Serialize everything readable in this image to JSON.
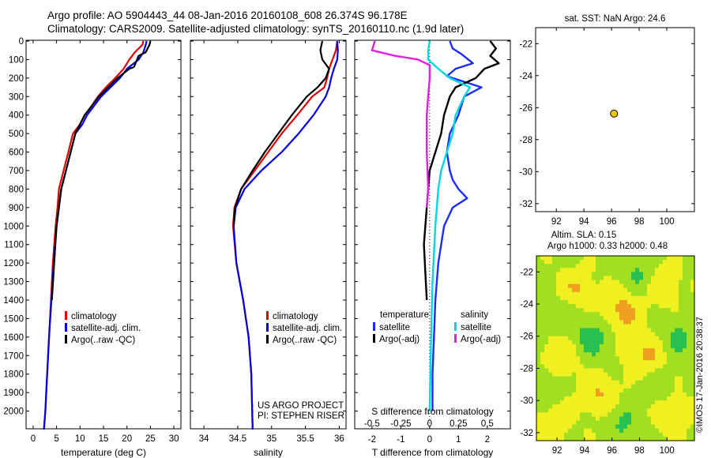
{
  "header": {
    "line1": "Argo profile: AO 5904443_44 08-Jan-2016 20160108_608 26.374S 96.178E",
    "line2": "Climatology: CARS2009. Satellite-adjusted climatology: synTS_20160110.nc (1.9d later)"
  },
  "credit": "©IMOS 17-Jan-2016 20:38:37",
  "chart_data": [
    {
      "type": "line",
      "id": "temperature",
      "xlabel": "temperature (deg C)",
      "ylabel": "",
      "xlim": [
        -1.5,
        31.5
      ],
      "ylim": [
        2100,
        0
      ],
      "xticks": [
        0,
        5,
        10,
        15,
        20,
        25,
        30
      ],
      "yticks": [
        0,
        100,
        200,
        300,
        400,
        500,
        600,
        700,
        800,
        900,
        1000,
        1100,
        1200,
        1300,
        1400,
        1500,
        1600,
        1700,
        1800,
        1900,
        2000
      ],
      "legend": {
        "position": "lower-center",
        "entries": [
          "climatology",
          "satellite-adj. clim.",
          "Argo(..raw -QC)"
        ]
      },
      "series": [
        {
          "name": "climatology",
          "color": "#e00000",
          "x": [
            23.5,
            23.3,
            21.7,
            20.5,
            19.3,
            17.5,
            15.5,
            13.8,
            12.5,
            11.0,
            10.0,
            8.5,
            7.5,
            6.5,
            5.5,
            5.2,
            4.8,
            4.2,
            3.8,
            3.4,
            3.0,
            2.6,
            2.3
          ],
          "y": [
            0,
            20,
            60,
            100,
            150,
            200,
            250,
            300,
            350,
            400,
            450,
            500,
            600,
            700,
            800,
            900,
            1000,
            1200,
            1400,
            1600,
            1800,
            2000,
            2100
          ]
        },
        {
          "name": "satellite-adj. clim.",
          "color": "#0000e0",
          "x": [
            24.2,
            24.0,
            23.5,
            22.5,
            20.0,
            18.5,
            16.5,
            14.5,
            13.0,
            11.5,
            10.5,
            9.0,
            8.0,
            7.0,
            6.0,
            5.5,
            5.0,
            4.4,
            3.9,
            3.4,
            3.0,
            2.6,
            2.3
          ],
          "y": [
            0,
            20,
            60,
            100,
            150,
            200,
            250,
            300,
            350,
            400,
            450,
            500,
            600,
            700,
            800,
            900,
            1000,
            1200,
            1400,
            1600,
            1800,
            2000,
            2100
          ]
        },
        {
          "name": "Argo(..raw -QC)",
          "color": "#000000",
          "x": [
            25.0,
            24.8,
            24.0,
            22.5,
            21.5,
            20.5,
            18.0,
            16.0,
            14.0,
            12.5,
            11.0,
            10.0,
            9.0,
            8.0,
            7.0,
            6.0,
            5.5,
            5.0,
            4.5,
            4.0
          ],
          "y": [
            0,
            20,
            60,
            80,
            140,
            150,
            200,
            250,
            300,
            350,
            400,
            450,
            500,
            600,
            700,
            800,
            900,
            1000,
            1200,
            1400
          ]
        }
      ]
    },
    {
      "type": "line",
      "id": "salinity",
      "xlabel": "salinity",
      "ylabel": "",
      "xlim": [
        33.8,
        36.1
      ],
      "ylim": [
        2100,
        0
      ],
      "xticks": [
        34,
        34.5,
        35,
        35.5,
        36
      ],
      "annotation": [
        "US ARGO PROJECT",
        "PI: STEPHEN RISER"
      ],
      "legend": {
        "position": "lower-right",
        "entries": [
          "climatology",
          "satellite-adj. clim.",
          "Argo(..raw -QC)"
        ]
      },
      "series": [
        {
          "name": "climatology",
          "color": "#e00000",
          "x": [
            35.97,
            35.95,
            35.9,
            35.85,
            35.82,
            35.78,
            35.6,
            35.38,
            35.15,
            34.95,
            34.75,
            34.55,
            34.45,
            34.43,
            34.48,
            34.58,
            34.66,
            34.7,
            34.72
          ],
          "y": [
            0,
            50,
            100,
            150,
            200,
            250,
            300,
            400,
            500,
            600,
            700,
            800,
            900,
            1000,
            1200,
            1400,
            1600,
            1800,
            2100
          ]
        },
        {
          "name": "satellite-adj. clim.",
          "color": "#0000e0",
          "x": [
            35.97,
            35.98,
            35.97,
            35.92,
            35.88,
            35.85,
            35.8,
            35.62,
            35.4,
            35.15,
            34.85,
            34.6,
            34.47,
            34.44,
            34.48,
            34.58,
            34.66,
            34.7,
            34.72
          ],
          "y": [
            0,
            50,
            100,
            150,
            200,
            250,
            300,
            400,
            500,
            600,
            700,
            800,
            900,
            1000,
            1200,
            1400,
            1600,
            1800,
            2100
          ]
        },
        {
          "name": "Argo(..raw -QC)",
          "color": "#000000",
          "x": [
            35.75,
            35.72,
            35.75,
            35.85,
            35.8,
            35.68,
            35.52,
            35.3,
            35.1,
            34.9,
            34.72,
            34.55,
            34.46,
            34.44
          ],
          "y": [
            0,
            50,
            100,
            150,
            200,
            250,
            300,
            400,
            500,
            600,
            700,
            800,
            900,
            1000
          ]
        }
      ]
    },
    {
      "type": "line",
      "id": "difference",
      "xlabel": "T difference from climatology",
      "xlabel_top": "S difference from climatology",
      "ylabel": "",
      "xlim": [
        -2.6,
        2.8
      ],
      "ylim": [
        2100,
        0
      ],
      "xticks_T": [
        -2,
        -1,
        0,
        1,
        2
      ],
      "xticks_S": [
        "-0.5",
        "-0.25",
        "0",
        "0.25",
        "0.5"
      ],
      "legend": {
        "position": "lower-center",
        "temperature_heading": "temperature",
        "salinity_heading": "salinity",
        "entries": [
          "satellite",
          "Argo(-adj)",
          "satellite",
          "Argo(-adj)"
        ]
      },
      "series": [
        {
          "name": "satellite",
          "group": "temperature",
          "color": "#1c2cff",
          "x": [
            0.7,
            0.8,
            1.1,
            1.5,
            0.9,
            0.6,
            1.4,
            1.8,
            1.2,
            1.0,
            0.7,
            0.6,
            0.7,
            0.8,
            1.0,
            1.3,
            0.8,
            0.5,
            0.3,
            0.2,
            0.15,
            0.1,
            0.1
          ],
          "y": [
            0,
            40,
            70,
            120,
            150,
            190,
            230,
            250,
            300,
            400,
            500,
            600,
            700,
            750,
            800,
            850,
            900,
            1000,
            1200,
            1400,
            1600,
            1800,
            2000
          ]
        },
        {
          "name": "Argo(-adj)",
          "group": "temperature",
          "color": "#000000",
          "x": [
            2.1,
            2.3,
            2.1,
            2.4,
            1.9,
            1.6,
            0.9,
            0.7,
            0.5,
            0.4,
            0.2,
            0.0,
            -0.1,
            -0.2,
            -0.1
          ],
          "y": [
            0,
            40,
            80,
            120,
            150,
            200,
            250,
            300,
            400,
            500,
            600,
            700,
            900,
            1100,
            1400
          ]
        },
        {
          "name": "satellite",
          "group": "salinity",
          "color": "#00d8e0",
          "x": [
            0.0,
            -0.05,
            -0.05,
            0.3,
            0.7,
            1.4,
            1.2,
            0.9,
            0.8,
            0.6,
            0.4,
            0.3,
            0.2,
            0.1,
            0.05,
            0.0
          ],
          "y": [
            0,
            50,
            100,
            150,
            200,
            250,
            300,
            400,
            500,
            600,
            700,
            800,
            1000,
            1300,
            1600,
            2000
          ]
        },
        {
          "name": "Argo(-adj)",
          "group": "salinity",
          "color": "#e020e0",
          "x": [
            -1.9,
            -2.0,
            -1.2,
            -0.4,
            0.0,
            0.0,
            -0.05,
            -0.1,
            -0.1,
            -0.05,
            -0.1
          ],
          "y": [
            0,
            50,
            80,
            100,
            130,
            200,
            300,
            400,
            600,
            800,
            900
          ]
        }
      ]
    },
    {
      "type": "scatter",
      "id": "position",
      "title": "sat. SST: NaN  Argo: 24.6",
      "xlim": [
        90.5,
        102
      ],
      "ylim": [
        -32.5,
        -21
      ],
      "xticks": [
        92,
        94,
        96,
        98,
        100
      ],
      "yticks": [
        -22,
        -24,
        -26,
        -28,
        -30,
        -32
      ],
      "points": [
        {
          "x": 96.178,
          "y": -26.374,
          "color": "#f0c800"
        }
      ]
    },
    {
      "type": "heatmap",
      "id": "altimetry",
      "title": [
        "Altim. SLA: 0.15",
        "Argo h1000: 0.33  h2000: 0.48"
      ],
      "xlim": [
        90.5,
        102
      ],
      "ylim": [
        -32.5,
        -21
      ],
      "xticks": [
        92,
        94,
        96,
        98,
        100
      ],
      "yticks": [
        -22,
        -24,
        -26,
        -28,
        -30,
        -32
      ],
      "colors": [
        "#1fa07a",
        "#28c050",
        "#a0e020",
        "#f0f020",
        "#f0a020"
      ]
    }
  ]
}
